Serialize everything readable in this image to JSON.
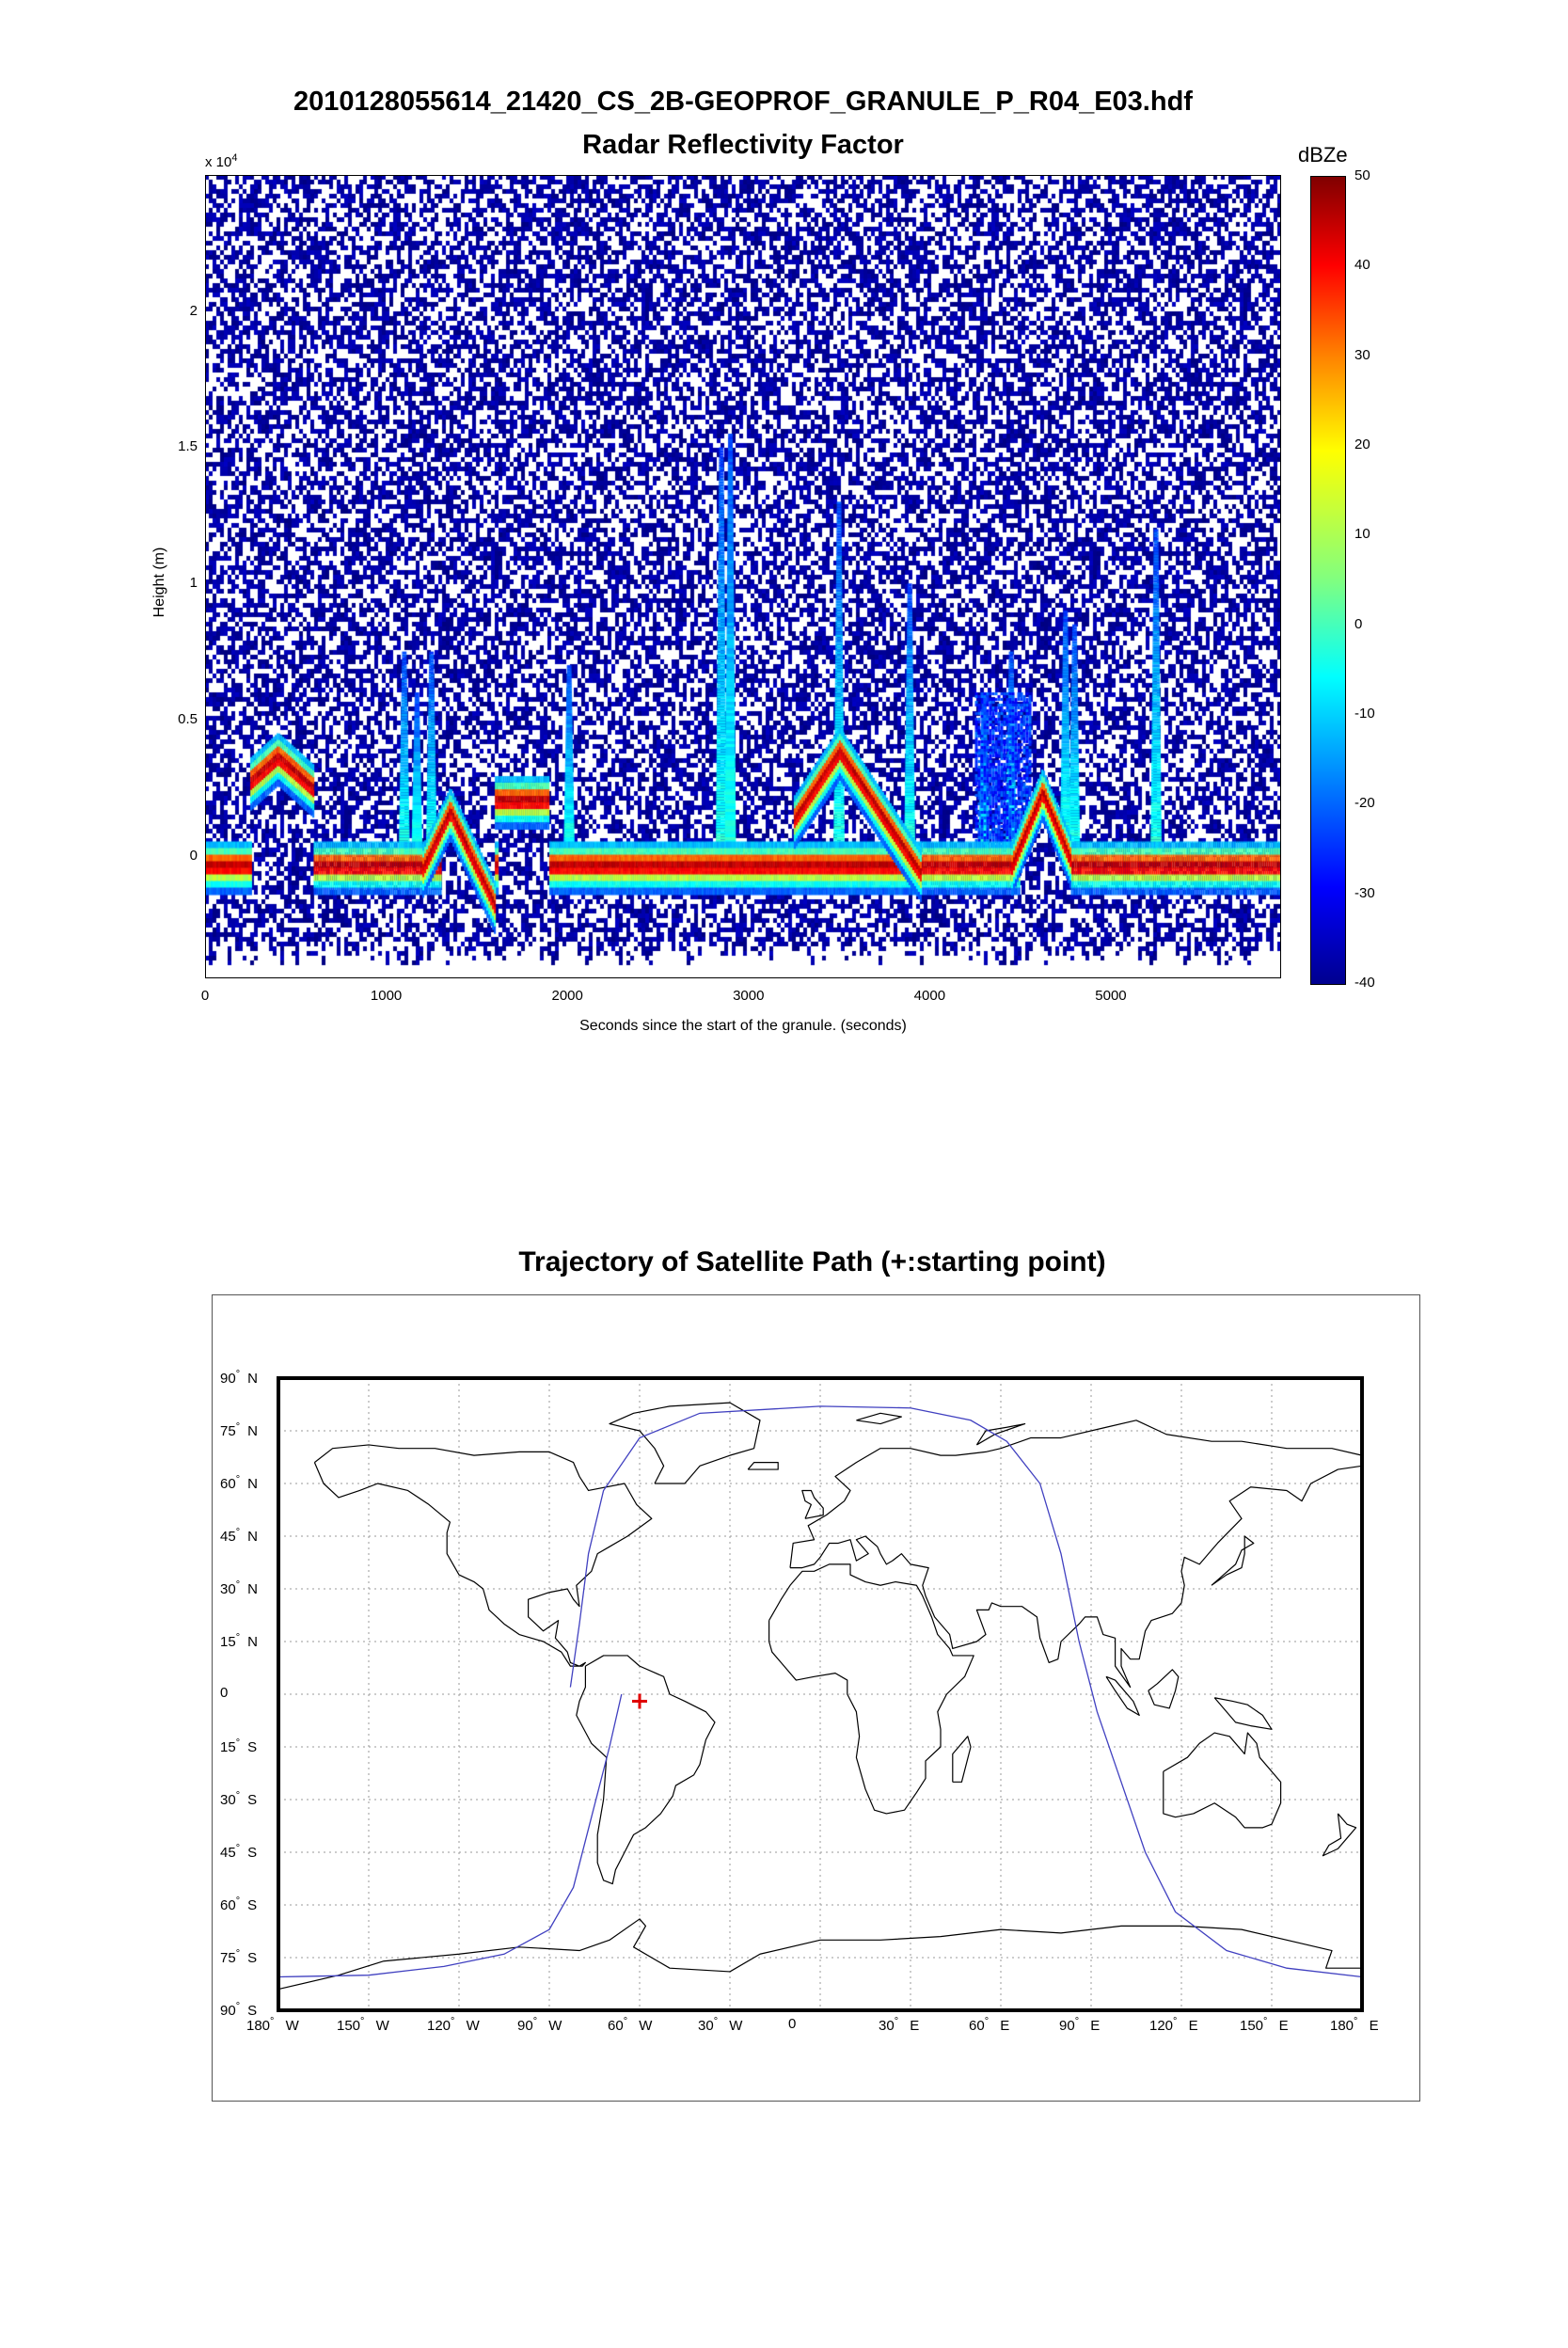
{
  "chart_data": [
    {
      "type": "heatmap",
      "title": "2010128055614_21420_CS_2B-GEOPROF_GRANULE_P_R04_E03.hdf",
      "subtitle": "Radar Reflectivity Factor",
      "xlabel": "Seconds since the start of the granule. (seconds)",
      "ylabel": "Height (m)",
      "y_multiplier": "x 10",
      "y_multiplier_exp": "4",
      "xlim": [
        0,
        5940
      ],
      "ylim": [
        -4500,
        25000
      ],
      "x_ticks": [
        "0",
        "1000",
        "2000",
        "3000",
        "4000",
        "5000"
      ],
      "x_tick_values": [
        0,
        1000,
        2000,
        3000,
        4000,
        5000
      ],
      "y_ticks": [
        "0",
        "0.5",
        "1",
        "1.5",
        "2"
      ],
      "y_tick_values": [
        0,
        5000,
        10000,
        15000,
        20000
      ],
      "colorbar": {
        "label": "dBZe",
        "min": -40,
        "max": 50,
        "ticks": [
          "50",
          "40",
          "30",
          "20",
          "10",
          "0",
          "-10",
          "-20",
          "-30",
          "-40"
        ],
        "tick_values": [
          50,
          40,
          30,
          20,
          10,
          0,
          -10,
          -20,
          -30,
          -40
        ]
      },
      "surface_layer": {
        "height_m": 0,
        "reflectivity_dbze": 42,
        "x_ranges": [
          [
            0,
            250
          ],
          [
            600,
            1300
          ],
          [
            1600,
            1620
          ],
          [
            1900,
            3950
          ],
          [
            3950,
            4500
          ],
          [
            4780,
            5940
          ]
        ]
      },
      "cloud_features": [
        {
          "x_start": 250,
          "x_end": 550,
          "top_m": 5000,
          "base_m": 2500,
          "peak_dbze": 40
        },
        {
          "x_start": 1250,
          "x_end": 1450,
          "top_m": 2300,
          "base_m": 0,
          "peak_dbze": 38
        },
        {
          "x_start": 1600,
          "x_end": 1850,
          "top_m": 3000,
          "base_m": 1500,
          "peak_dbze": 40
        },
        {
          "x_start": 3300,
          "x_end": 3700,
          "top_m": 5000,
          "base_m": 2000,
          "peak_dbze": 40
        },
        {
          "x_start": 4500,
          "x_end": 4700,
          "top_m": 3000,
          "base_m": 0,
          "peak_dbze": 40
        }
      ],
      "columns": [
        {
          "x": 1100,
          "top_m": 7500
        },
        {
          "x": 1170,
          "top_m": 6000
        },
        {
          "x": 1250,
          "top_m": 7500
        },
        {
          "x": 2010,
          "top_m": 7000
        },
        {
          "x": 2850,
          "top_m": 15000
        },
        {
          "x": 2900,
          "top_m": 15500
        },
        {
          "x": 3500,
          "top_m": 13000
        },
        {
          "x": 3890,
          "top_m": 10000
        },
        {
          "x": 4300,
          "top_m": 6000
        },
        {
          "x": 4450,
          "top_m": 7500
        },
        {
          "x": 4750,
          "top_m": 9000
        },
        {
          "x": 4800,
          "top_m": 8500
        },
        {
          "x": 5250,
          "top_m": 12000
        }
      ]
    },
    {
      "type": "line",
      "title": "Trajectory of Satellite Path (+:starting point)",
      "xlim": [
        -180,
        180
      ],
      "ylim": [
        -90,
        90
      ],
      "grid": true,
      "x_ticks": [
        {
          "deg": "180",
          "hem": "W"
        },
        {
          "deg": "150",
          "hem": "W"
        },
        {
          "deg": "120",
          "hem": "W"
        },
        {
          "deg": "90",
          "hem": "W"
        },
        {
          "deg": "60",
          "hem": "W"
        },
        {
          "deg": "30",
          "hem": "W"
        },
        {
          "deg": "0",
          "hem": ""
        },
        {
          "deg": "30",
          "hem": "E"
        },
        {
          "deg": "60",
          "hem": "E"
        },
        {
          "deg": "90",
          "hem": "E"
        },
        {
          "deg": "120",
          "hem": "E"
        },
        {
          "deg": "150",
          "hem": "E"
        },
        {
          "deg": "180",
          "hem": "E"
        }
      ],
      "x_tick_values": [
        -180,
        -150,
        -120,
        -90,
        -60,
        -30,
        0,
        30,
        60,
        90,
        120,
        150,
        180
      ],
      "y_ticks": [
        {
          "deg": "90",
          "hem": "N"
        },
        {
          "deg": "75",
          "hem": "N"
        },
        {
          "deg": "60",
          "hem": "N"
        },
        {
          "deg": "45",
          "hem": "N"
        },
        {
          "deg": "30",
          "hem": "N"
        },
        {
          "deg": "15",
          "hem": "N"
        },
        {
          "deg": "0",
          "hem": ""
        },
        {
          "deg": "15",
          "hem": "S"
        },
        {
          "deg": "30",
          "hem": "S"
        },
        {
          "deg": "45",
          "hem": "S"
        },
        {
          "deg": "60",
          "hem": "S"
        },
        {
          "deg": "75",
          "hem": "S"
        },
        {
          "deg": "90",
          "hem": "S"
        }
      ],
      "y_tick_values": [
        90,
        75,
        60,
        45,
        30,
        15,
        0,
        -15,
        -30,
        -45,
        -60,
        -75,
        -90
      ],
      "start_point": {
        "lon": -60,
        "lat": -2
      },
      "track": [
        {
          "lon": -83,
          "lat": 2
        },
        {
          "lon": -80,
          "lat": 20
        },
        {
          "lon": -77,
          "lat": 40
        },
        {
          "lon": -72,
          "lat": 58
        },
        {
          "lon": -60,
          "lat": 73
        },
        {
          "lon": -40,
          "lat": 80
        },
        {
          "lon": 0,
          "lat": 82
        },
        {
          "lon": 30,
          "lat": 81.5
        },
        {
          "lon": 50,
          "lat": 78
        },
        {
          "lon": 62,
          "lat": 72
        },
        {
          "lon": 73,
          "lat": 60
        },
        {
          "lon": 80,
          "lat": 40
        },
        {
          "lon": 86,
          "lat": 15
        },
        {
          "lon": 92,
          "lat": -5
        },
        {
          "lon": 100,
          "lat": -25
        },
        {
          "lon": 108,
          "lat": -45
        },
        {
          "lon": 118,
          "lat": -62
        },
        {
          "lon": 135,
          "lat": -73
        },
        {
          "lon": 155,
          "lat": -78
        },
        {
          "lon": 180,
          "lat": -80.5
        }
      ],
      "track_b": [
        {
          "lon": -180,
          "lat": -80.5
        },
        {
          "lon": -150,
          "lat": -80
        },
        {
          "lon": -125,
          "lat": -77.5
        },
        {
          "lon": -105,
          "lat": -74
        },
        {
          "lon": -90,
          "lat": -67
        },
        {
          "lon": -82,
          "lat": -55
        },
        {
          "lon": -76,
          "lat": -35
        },
        {
          "lon": -70,
          "lat": -15
        },
        {
          "lon": -66,
          "lat": 0
        }
      ]
    }
  ]
}
